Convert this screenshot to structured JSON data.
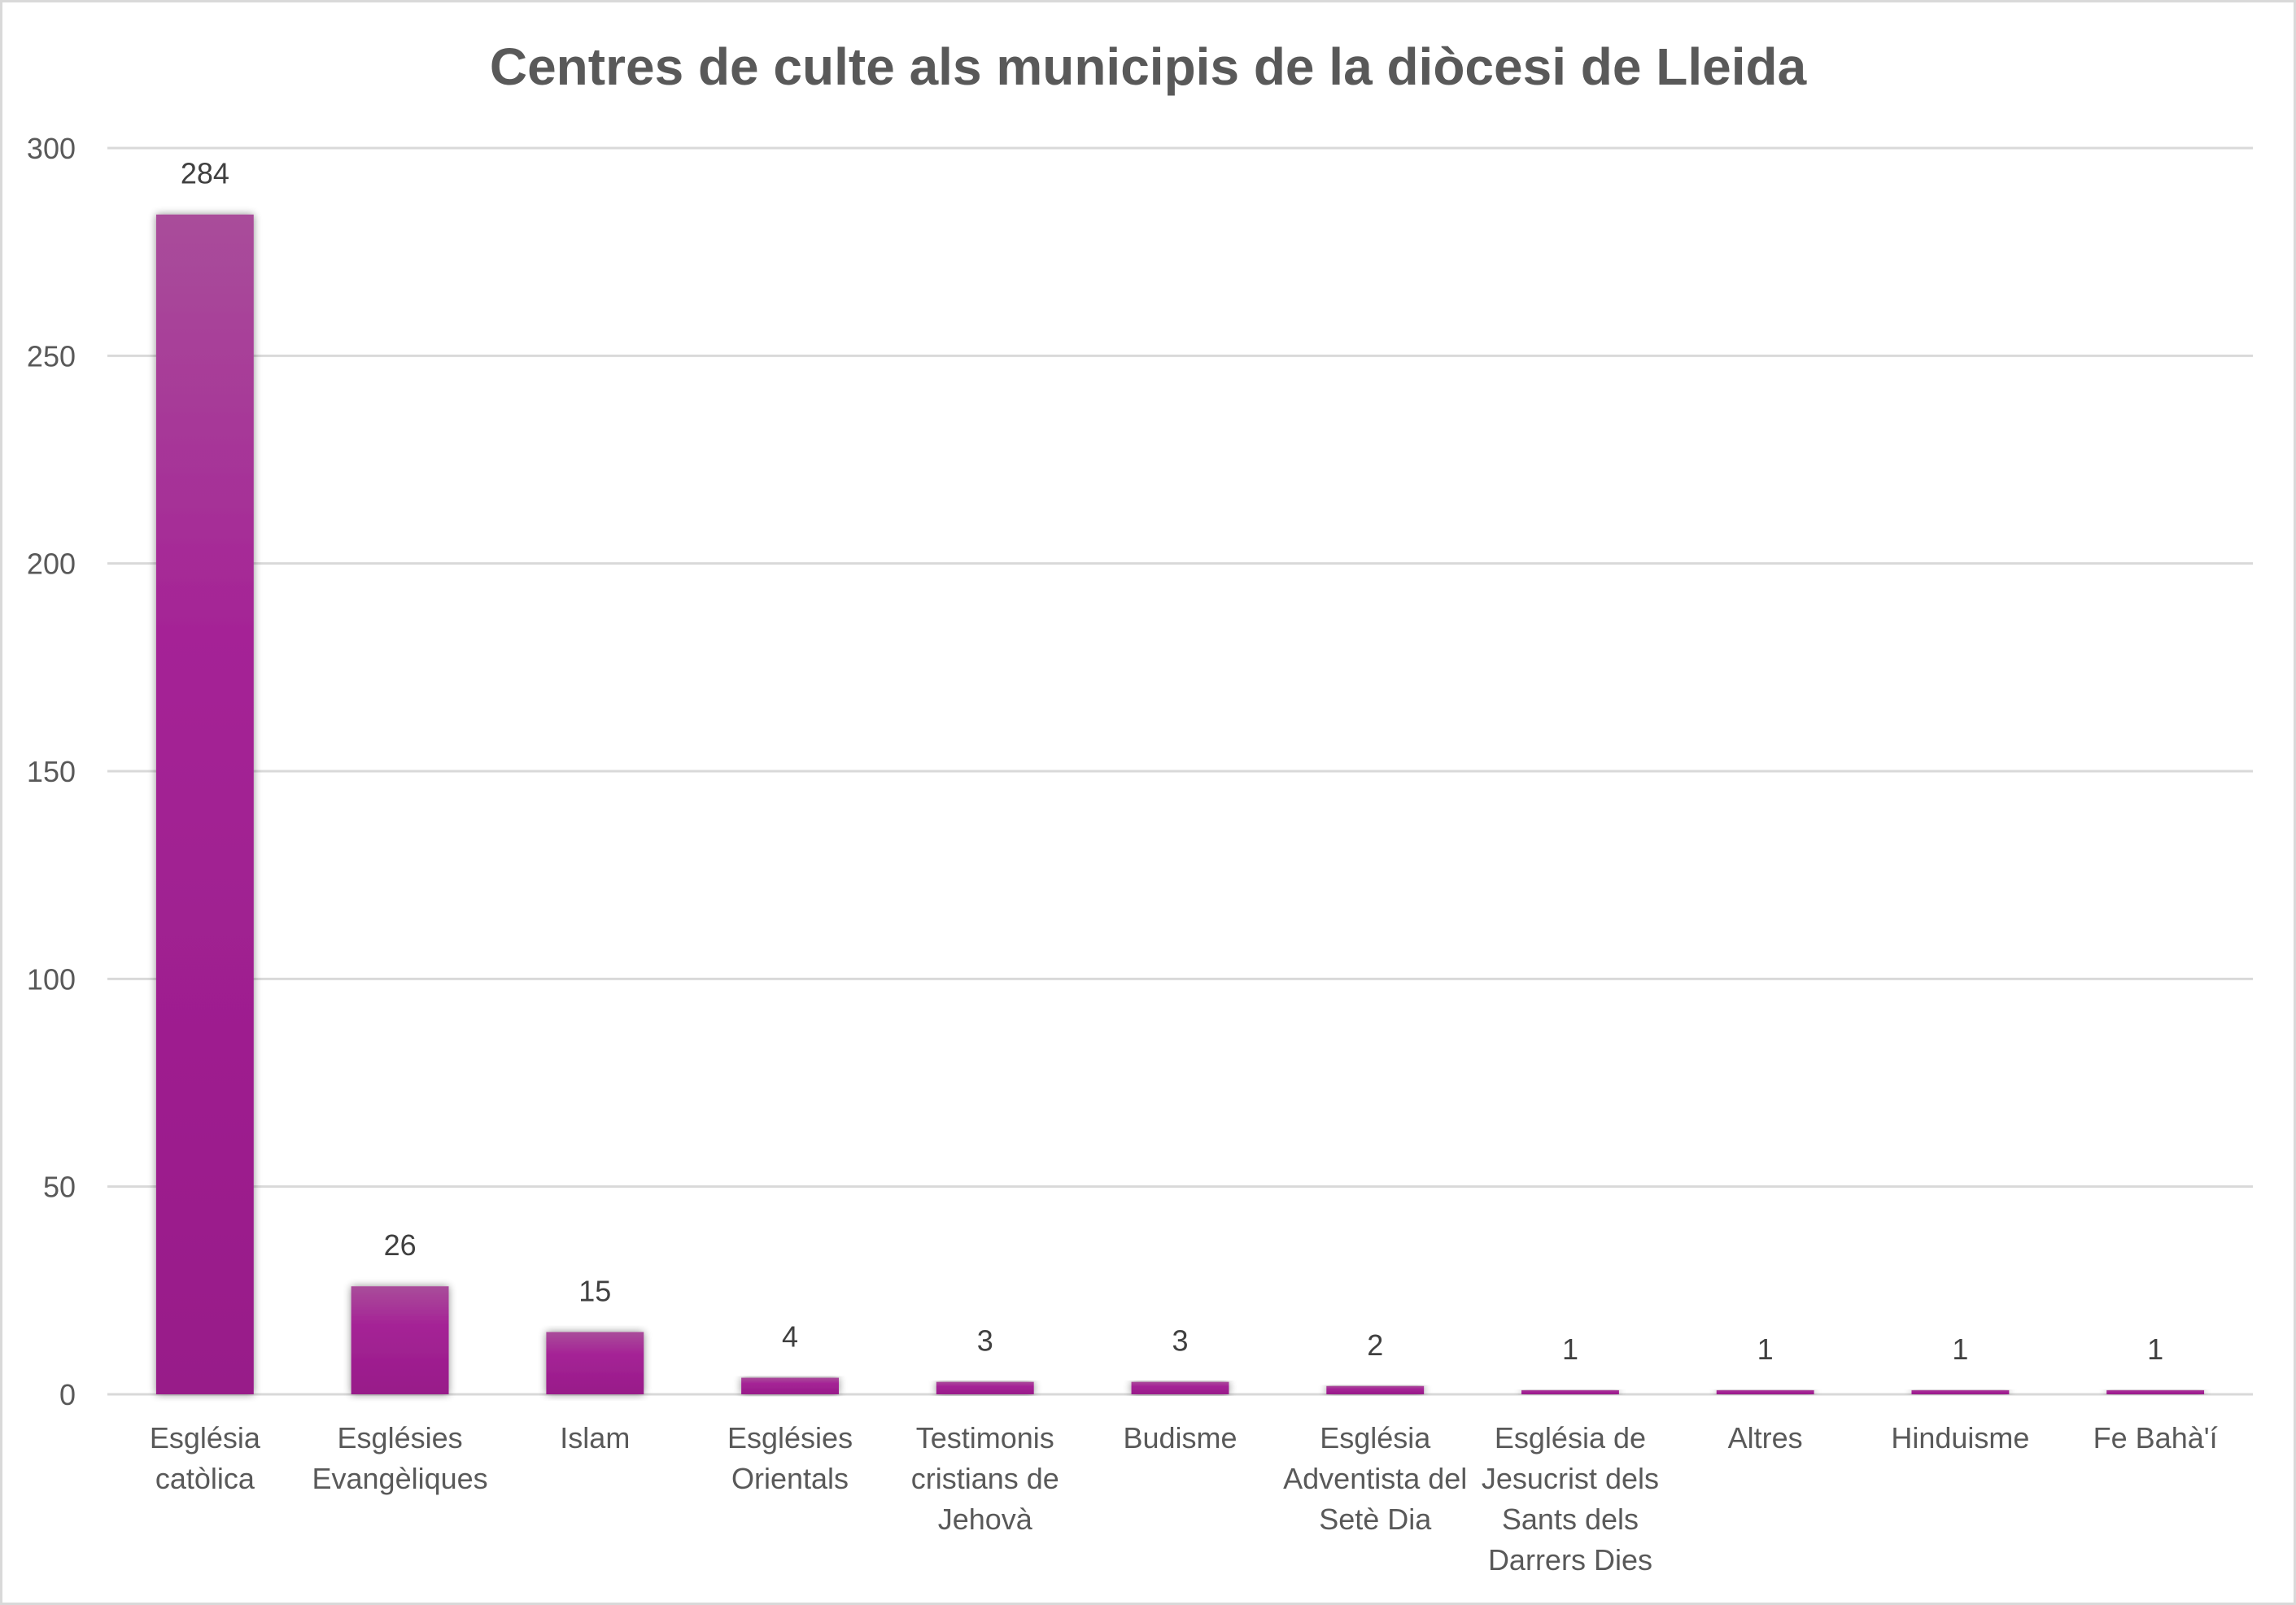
{
  "chart_data": {
    "type": "bar",
    "title": "Centres de culte als municipis de la diòcesi de Lleida",
    "xlabel": "",
    "ylabel": "",
    "ylim": [
      0,
      300
    ],
    "yticks": [
      0,
      50,
      100,
      150,
      200,
      250,
      300
    ],
    "grid": true,
    "legend": "none",
    "categories": [
      [
        "Església",
        "catòlica"
      ],
      [
        "Esglésies",
        "Evangèliques"
      ],
      [
        "Islam"
      ],
      [
        "Esglésies",
        "Orientals"
      ],
      [
        "Testimonis",
        "cristians de",
        "Jehovà"
      ],
      [
        "Budisme"
      ],
      [
        "Església",
        "Adventista del",
        "Setè Dia"
      ],
      [
        "Església de",
        "Jesucrist dels",
        "Sants dels",
        "Darrers Dies"
      ],
      [
        "Altres"
      ],
      [
        "Hinduisme"
      ],
      [
        "Fe Bahà'í"
      ]
    ],
    "values": [
      284,
      26,
      15,
      4,
      3,
      3,
      2,
      1,
      1,
      1,
      1
    ],
    "data_labels": true,
    "colors": {
      "bar_top": "#A94D9A",
      "bar_mid": "#A52496",
      "bar_bottom": "#981A89",
      "grid": "#D9D9D9",
      "axis_text": "#595959",
      "value_text": "#404040",
      "title_text": "#595959"
    }
  }
}
